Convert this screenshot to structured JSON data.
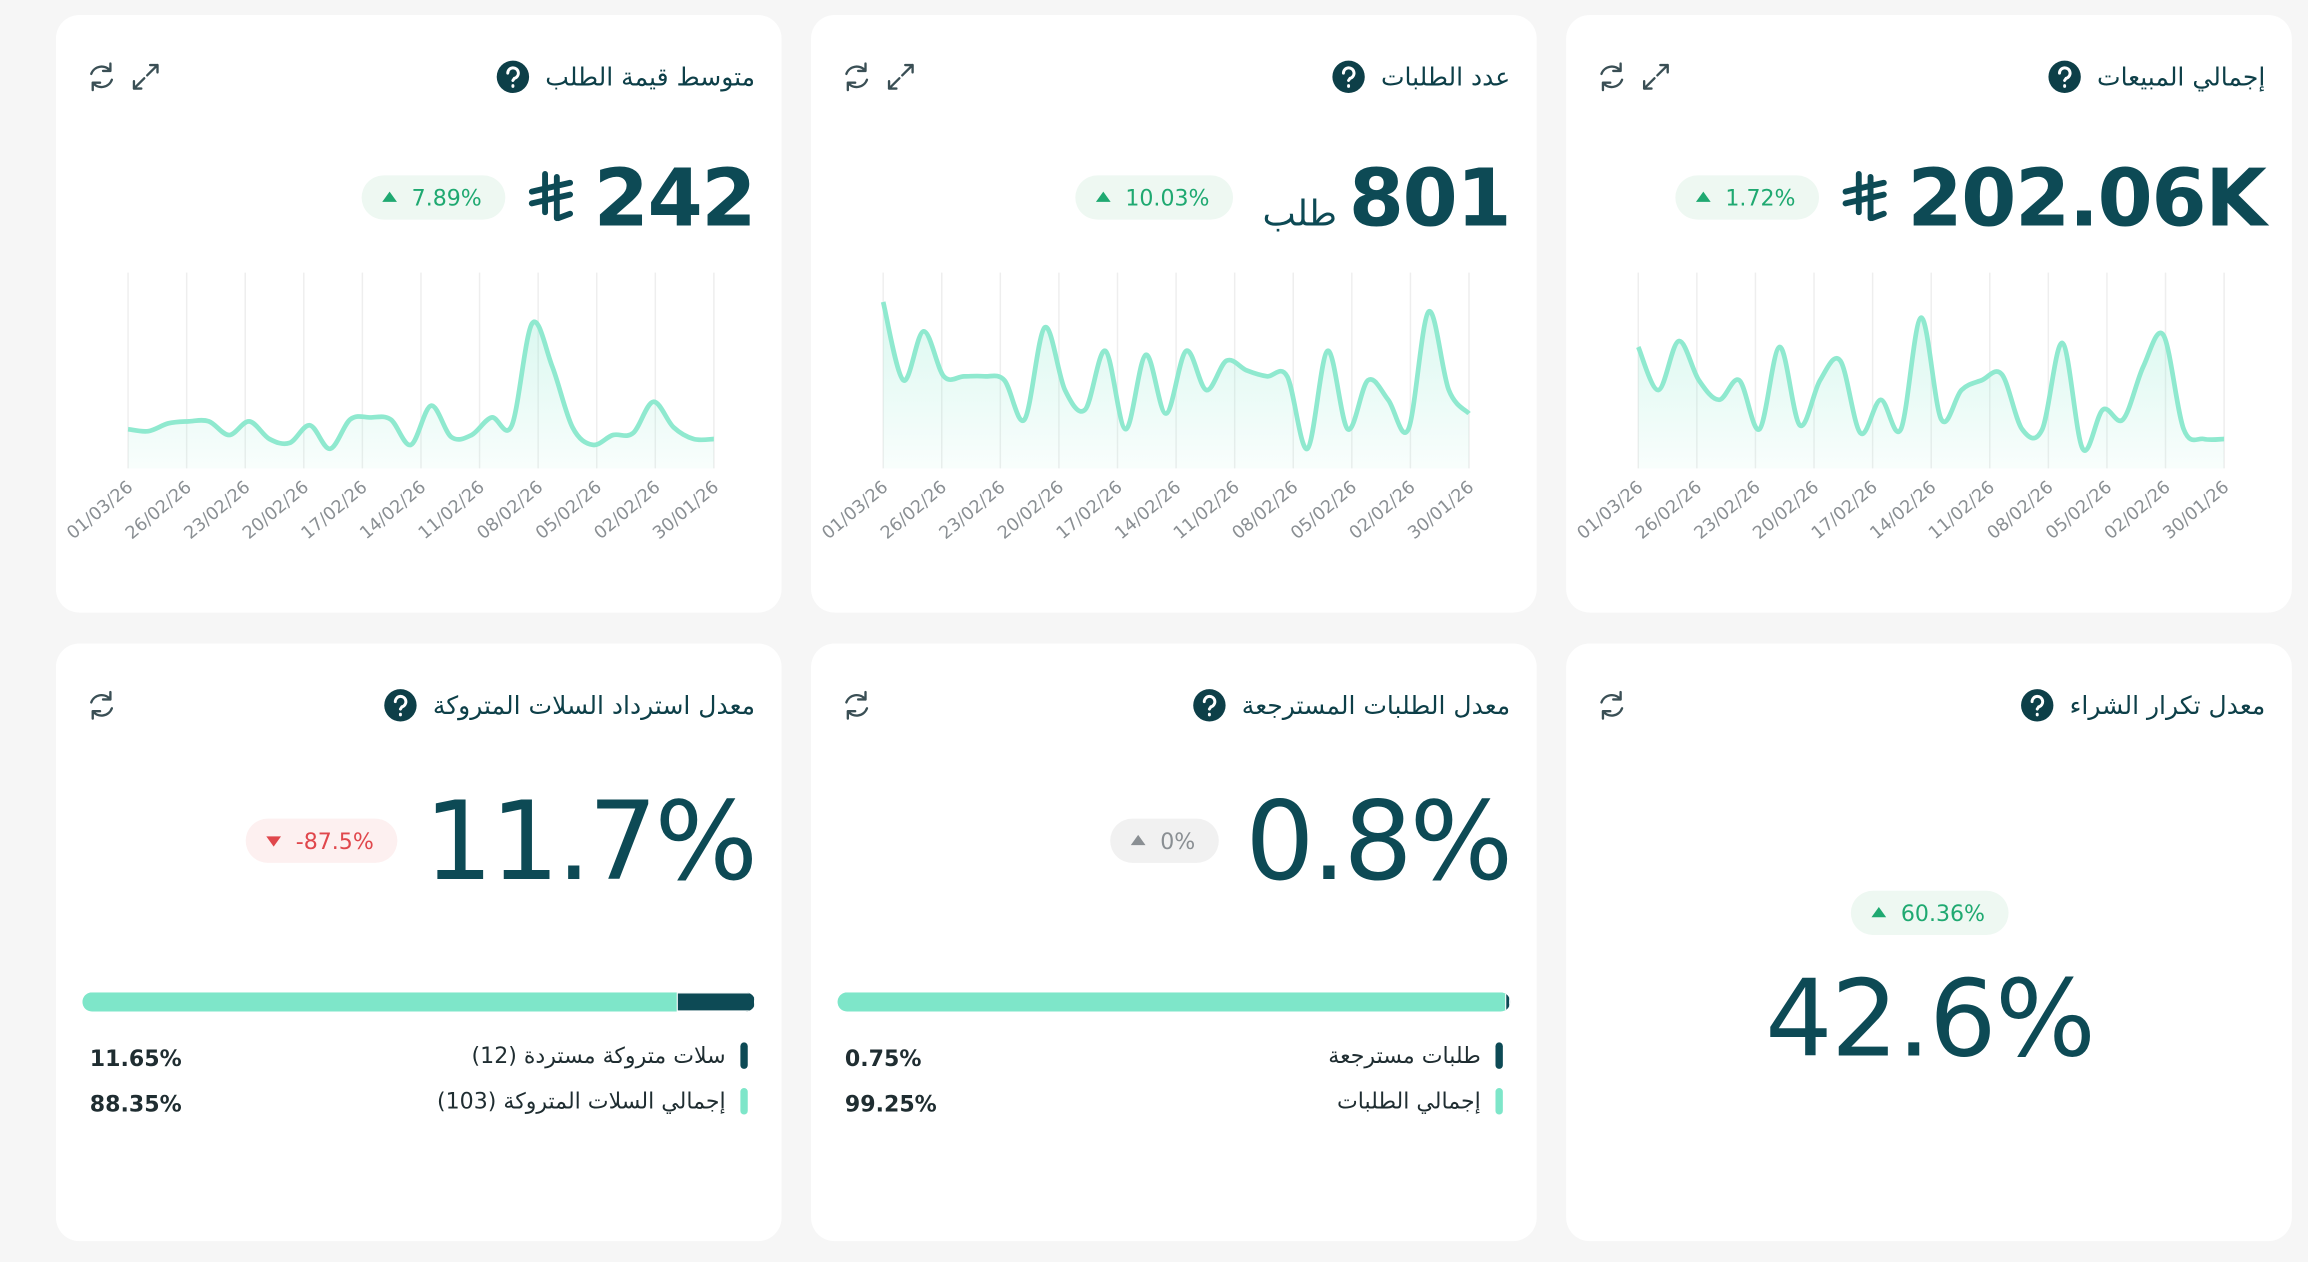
{
  "dates": [
    "01/03/26",
    "26/02/26",
    "23/02/26",
    "20/02/26",
    "17/02/26",
    "14/02/26",
    "11/02/26",
    "08/02/26",
    "05/02/26",
    "02/02/26",
    "30/01/26"
  ],
  "spark_ylim": [
    0,
    100
  ],
  "cards": [
    {
      "kind": "spark",
      "title": "إجمالي المبيعات",
      "value": "202.06K",
      "riyal_symbol": true,
      "change": {
        "label": "1.72%",
        "direction": "up"
      },
      "expandable": true,
      "values": [
        62,
        40,
        65,
        45,
        35,
        45,
        20,
        62,
        22,
        45,
        55,
        18,
        35,
        20,
        77,
        25,
        40,
        45,
        48,
        20,
        20,
        64,
        10,
        30,
        25,
        52,
        68,
        20,
        15,
        15
      ]
    },
    {
      "kind": "spark",
      "title": "عدد الطلبات",
      "value": "801",
      "unit": "طلب",
      "change": {
        "label": "10.03%",
        "direction": "up"
      },
      "expandable": true,
      "values": [
        85,
        45,
        70,
        47,
        47,
        47,
        45,
        25,
        72,
        40,
        30,
        60,
        20,
        58,
        28,
        60,
        40,
        55,
        50,
        47,
        47,
        10,
        60,
        20,
        45,
        35,
        20,
        80,
        40,
        28
      ]
    },
    {
      "kind": "spark",
      "title": "متوسط قيمة الطلب",
      "value": "242",
      "riyal_symbol": true,
      "change": {
        "label": "7.89%",
        "direction": "up"
      },
      "expandable": true,
      "values": [
        20,
        19,
        23,
        24,
        24,
        17,
        24,
        15,
        13,
        22,
        10,
        25,
        26,
        25,
        12,
        32,
        16,
        17,
        26,
        22,
        74,
        52,
        21,
        12,
        17,
        18,
        34,
        21,
        15,
        15
      ]
    },
    {
      "kind": "big",
      "title": "معدل تكرار الشراء",
      "value": "42.6%",
      "change": {
        "label": "60.36%",
        "direction": "up"
      }
    },
    {
      "kind": "bar",
      "title": "معدل الطلبات المسترجعة",
      "value": "0.8%",
      "change": {
        "label": "0%",
        "direction": "flat"
      },
      "segments": [
        {
          "label": "طلبات مسترجعة",
          "value": 0.75,
          "value_label": "0.75%",
          "color": "#0d4a55"
        },
        {
          "label": "إجمالي الطلبات",
          "value": 99.25,
          "value_label": "99.25%",
          "color": "#7ee6c9"
        }
      ]
    },
    {
      "kind": "bar",
      "title": "معدل استرداد السلات المتروكة",
      "value": "11.7%",
      "change": {
        "label": "-87.5%",
        "direction": "down"
      },
      "segments": [
        {
          "label": "سلات متروكة مستردة (12)",
          "value": 11.65,
          "value_label": "11.65%",
          "color": "#0d4a55"
        },
        {
          "label": "إجمالي السلات المتروكة (103)",
          "value": 88.35,
          "value_label": "88.35%",
          "color": "#7ee6c9"
        }
      ]
    }
  ]
}
